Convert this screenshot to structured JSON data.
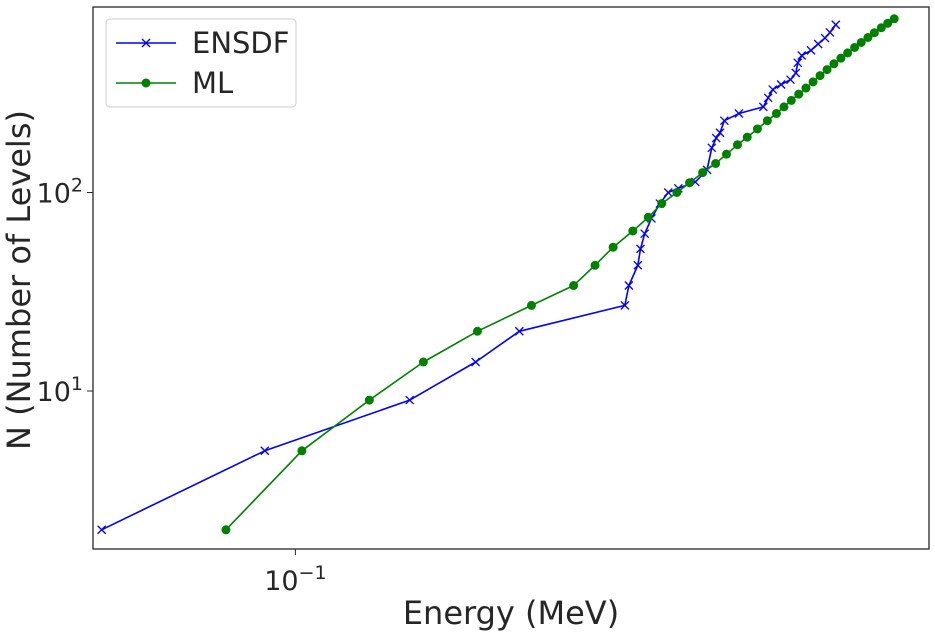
{
  "chart_data": {
    "type": "line",
    "title": "",
    "xlabel": "Energy (MeV)",
    "ylabel": "N (Number of Levels)",
    "xscale": "log",
    "yscale": "log",
    "xlim": [
      0.061,
      0.47
    ],
    "ylim": [
      1.6,
      860
    ],
    "grid": false,
    "legend_position": "top-left",
    "x_ticks": [
      {
        "value": 0.1,
        "base": "10",
        "exp": "−1"
      }
    ],
    "y_ticks": [
      {
        "value": 10,
        "base": "10",
        "exp": "1"
      },
      {
        "value": 100,
        "base": "10",
        "exp": "2"
      }
    ],
    "series": [
      {
        "name": "ENSDF",
        "color": "#0000ff",
        "marker": "x",
        "points": [
          [
            0.0623,
            2
          ],
          [
            0.0928,
            5
          ],
          [
            0.1322,
            9
          ],
          [
            0.1553,
            14
          ],
          [
            0.1728,
            20
          ],
          [
            0.2236,
            27
          ],
          [
            0.2258,
            34
          ],
          [
            0.2308,
            43
          ],
          [
            0.2323,
            52
          ],
          [
            0.2347,
            62
          ],
          [
            0.2386,
            74
          ],
          [
            0.2436,
            88
          ],
          [
            0.2486,
            100
          ],
          [
            0.2548,
            105
          ],
          [
            0.2656,
            113
          ],
          [
            0.2733,
            130
          ],
          [
            0.2765,
            168
          ],
          [
            0.2795,
            188
          ],
          [
            0.2821,
            200
          ],
          [
            0.2851,
            230
          ],
          [
            0.2954,
            250
          ],
          [
            0.3136,
            270
          ],
          [
            0.3173,
            300
          ],
          [
            0.3209,
            330
          ],
          [
            0.3275,
            350
          ],
          [
            0.3351,
            370
          ],
          [
            0.3395,
            400
          ],
          [
            0.3411,
            450
          ],
          [
            0.3444,
            490
          ],
          [
            0.3523,
            520
          ],
          [
            0.3585,
            560
          ],
          [
            0.3646,
            600
          ],
          [
            0.369,
            640
          ],
          [
            0.3743,
            700
          ]
        ]
      },
      {
        "name": "ML",
        "color": "#008000",
        "marker": "o",
        "points": [
          [
            0.0844,
            2
          ],
          [
            0.1016,
            5
          ],
          [
            0.1198,
            9
          ],
          [
            0.1367,
            14
          ],
          [
            0.156,
            20
          ],
          [
            0.178,
            27
          ],
          [
            0.1973,
            34
          ],
          [
            0.2079,
            43
          ],
          [
            0.2173,
            53
          ],
          [
            0.228,
            64
          ],
          [
            0.2368,
            75
          ],
          [
            0.2447,
            88
          ],
          [
            0.2539,
            100
          ],
          [
            0.2619,
            112
          ],
          [
            0.2704,
            126
          ],
          [
            0.2791,
            140
          ],
          [
            0.2866,
            156
          ],
          [
            0.2944,
            174
          ],
          [
            0.3015,
            190
          ],
          [
            0.3091,
            209
          ],
          [
            0.3167,
            230
          ],
          [
            0.3238,
            250
          ],
          [
            0.3298,
            270
          ],
          [
            0.3358,
            291
          ],
          [
            0.3419,
            313
          ],
          [
            0.348,
            336
          ],
          [
            0.3541,
            361
          ],
          [
            0.3602,
            388
          ],
          [
            0.3664,
            416
          ],
          [
            0.3726,
            445
          ],
          [
            0.379,
            475
          ],
          [
            0.3853,
            505
          ],
          [
            0.3919,
            538
          ],
          [
            0.3983,
            570
          ],
          [
            0.4049,
            604
          ],
          [
            0.4113,
            638
          ],
          [
            0.4183,
            676
          ],
          [
            0.4249,
            712
          ],
          [
            0.4317,
            750
          ]
        ]
      }
    ]
  }
}
